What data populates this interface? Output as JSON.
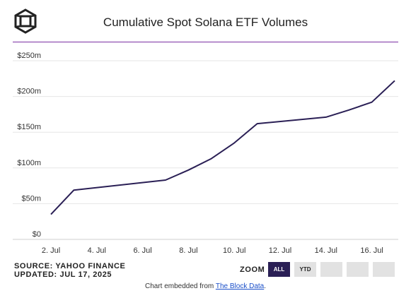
{
  "header": {
    "title": "Cumulative Spot Solana ETF Volumes"
  },
  "footer": {
    "source": "SOURCE: YAHOO FINANCE",
    "updated": "UPDATED: JUL 17, 2025",
    "zoom_label": "ZOOM",
    "zoom_buttons": [
      "ALL",
      "YTD",
      "",
      "",
      ""
    ],
    "zoom_active": "ALL",
    "embed_prefix": "Chart embedded from ",
    "embed_link": "The Block Data",
    "embed_suffix": "."
  },
  "colors": {
    "accent_rule": "#7b2fa3",
    "line": "#2a1f55",
    "grid": "#e6e6e6"
  },
  "chart_data": {
    "type": "line",
    "title": "Cumulative Spot Solana ETF Volumes",
    "xlabel": "",
    "ylabel": "",
    "x_ticks": [
      "2. Jul",
      "4. Jul",
      "6. Jul",
      "8. Jul",
      "10. Jul",
      "12. Jul",
      "14. Jul",
      "16. Jul"
    ],
    "y_ticks": [
      "$0",
      "$50m",
      "$100m",
      "$150m",
      "$200m",
      "$250m"
    ],
    "ylim": [
      0,
      250
    ],
    "xlim": [
      "2025-07-02",
      "2025-07-17"
    ],
    "grid": true,
    "series": [
      {
        "x": [
          "2025-07-02",
          "2025-07-03",
          "2025-07-07",
          "2025-07-08",
          "2025-07-09",
          "2025-07-10",
          "2025-07-11",
          "2025-07-14",
          "2025-07-15",
          "2025-07-16",
          "2025-07-17"
        ],
        "values": [
          35,
          69,
          83,
          97,
          113,
          135,
          162,
          171,
          181,
          192,
          222
        ]
      }
    ]
  }
}
